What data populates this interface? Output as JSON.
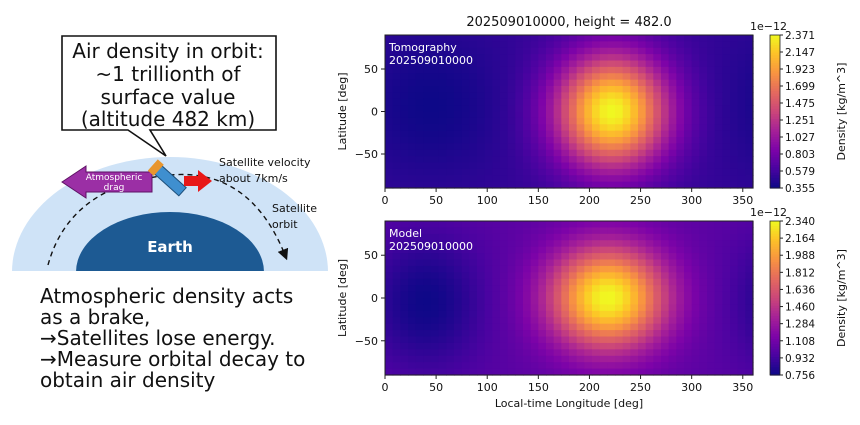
{
  "schematic": {
    "callout_lines": [
      "Air density in orbit:",
      "~1 trillionth of",
      "surface value",
      "(altitude 482 km)"
    ],
    "drag_label_lines": [
      "Atmospheric",
      "drag"
    ],
    "velocity_label_lines": [
      "Satellite velocity",
      "about 7km/s"
    ],
    "orbit_label_lines": [
      "Satellite",
      "orbit"
    ],
    "earth_label": "Earth",
    "explanation_lines": [
      "Atmospheric density acts",
      "as a brake,",
      "→Satellites lose energy.",
      "→Measure orbital decay to",
      "obtain air density"
    ],
    "colors": {
      "atmosphere": "#cfe3f7",
      "earth": "#1d5a93",
      "drag_arrow": "#9b2fa5",
      "velocity_arrow": "#e81818",
      "satellite": "#3f8fcf"
    }
  },
  "chart_data": [
    {
      "type": "heatmap",
      "title": "202509010000, height = 482.0",
      "inset_label_lines": [
        "Tomography",
        "202509010000"
      ],
      "xlabel": "",
      "ylabel": "Latitude [deg]",
      "xlim": [
        0,
        360
      ],
      "ylim": [
        -90,
        90
      ],
      "xticks": [
        "0",
        "50",
        "100",
        "150",
        "200",
        "250",
        "300",
        "350"
      ],
      "yticks": [
        "50",
        "0",
        "−50"
      ],
      "colormap": "plasma",
      "colorbar": {
        "label": "Density [kg/m^3]",
        "scale_label": "1e−12",
        "ticks": [
          "2.371",
          "2.147",
          "1.923",
          "1.699",
          "1.475",
          "1.251",
          "1.027",
          "0.803",
          "0.579",
          "0.355"
        ],
        "min": 0.355,
        "max": 2.371
      },
      "field": {
        "background": 0.52,
        "features": [
          {
            "kind": "max",
            "x": 222,
            "y": 0,
            "value": 2.37,
            "sx": 38,
            "sy": 46
          },
          {
            "kind": "min",
            "x": 45,
            "y": 8,
            "value": 0.36,
            "sx": 50,
            "sy": 60
          }
        ]
      }
    },
    {
      "type": "heatmap",
      "title": "",
      "inset_label_lines": [
        "Model",
        "202509010000"
      ],
      "xlabel": "Local-time Longitude [deg]",
      "ylabel": "Latitude [deg]",
      "xlim": [
        0,
        360
      ],
      "ylim": [
        -90,
        90
      ],
      "xticks": [
        "0",
        "50",
        "100",
        "150",
        "200",
        "250",
        "300",
        "350"
      ],
      "yticks": [
        "50",
        "0",
        "−50"
      ],
      "colormap": "plasma",
      "colorbar": {
        "label": "Density [kg/m^3]",
        "scale_label": "1e−12",
        "ticks": [
          "2.340",
          "2.164",
          "1.988",
          "1.812",
          "1.636",
          "1.460",
          "1.284",
          "1.108",
          "0.932",
          "0.756"
        ],
        "min": 0.756,
        "max": 2.34
      },
      "field": {
        "background": 1.02,
        "features": [
          {
            "kind": "max",
            "x": 218,
            "y": 0,
            "value": 2.34,
            "sx": 40,
            "sy": 42
          },
          {
            "kind": "min",
            "x": 40,
            "y": -5,
            "value": 0.76,
            "sx": 40,
            "sy": 55
          }
        ]
      }
    }
  ]
}
